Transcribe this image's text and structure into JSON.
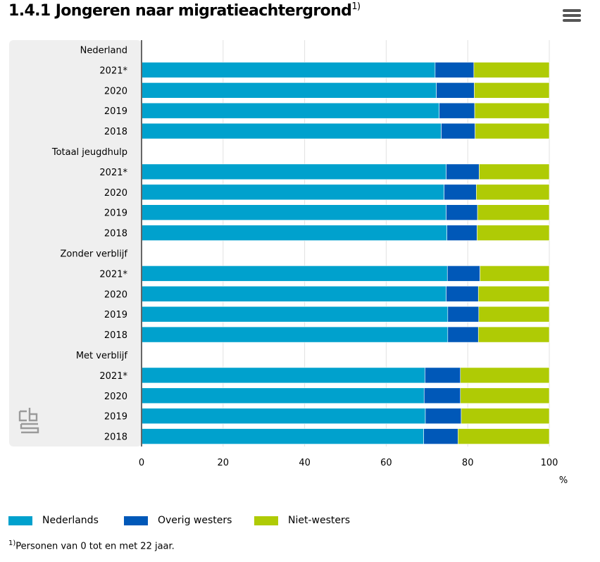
{
  "page": {
    "title": "1.4.1 Jongeren naar migratieachtergrond",
    "title_sup": "1)",
    "menu_icon": "hamburger-menu-icon",
    "logo": "cbs",
    "footnote_sup": "1)",
    "footnote": "Personen van 0 tot en met 22 jaar."
  },
  "chart_data": {
    "type": "bar",
    "orientation": "horizontal",
    "stacked": true,
    "title": "1.4.1 Jongeren naar migratieachtergrond",
    "unit": "%",
    "xlim": [
      0,
      100
    ],
    "xticks": [
      0,
      20,
      40,
      60,
      80,
      100
    ],
    "grid": true,
    "legend_position": "bottom-left",
    "colors": {
      "Nederlands": "#00a1cd",
      "Overig westers": "#0058b8",
      "Niet-westers": "#afcb05"
    },
    "groups": [
      {
        "name": "Nederland",
        "rows": [
          {
            "label": "2021*",
            "values": [
              72,
              9.5,
              18.5
            ]
          },
          {
            "label": "2020",
            "values": [
              72.3,
              9.3,
              18.4
            ]
          },
          {
            "label": "2019",
            "values": [
              73,
              8.7,
              18.3
            ]
          },
          {
            "label": "2018",
            "values": [
              73.5,
              8.3,
              18.2
            ]
          }
        ]
      },
      {
        "name": "Totaal jeugdhulp",
        "rows": [
          {
            "label": "2021*",
            "values": [
              74.7,
              8.1,
              17.2
            ]
          },
          {
            "label": "2020",
            "values": [
              74.2,
              7.9,
              17.9
            ]
          },
          {
            "label": "2019",
            "values": [
              74.7,
              7.7,
              17.6
            ]
          },
          {
            "label": "2018",
            "values": [
              74.9,
              7.4,
              17.7
            ]
          }
        ]
      },
      {
        "name": "Zonder verblijf",
        "rows": [
          {
            "label": "2021*",
            "values": [
              75,
              8,
              17
            ]
          },
          {
            "label": "2020",
            "values": [
              74.7,
              7.9,
              17.4
            ]
          },
          {
            "label": "2019",
            "values": [
              75.1,
              7.6,
              17.3
            ]
          },
          {
            "label": "2018",
            "values": [
              75.1,
              7.5,
              17.4
            ]
          }
        ]
      },
      {
        "name": "Met verblijf",
        "rows": [
          {
            "label": "2021*",
            "values": [
              69.5,
              8.7,
              21.8
            ]
          },
          {
            "label": "2020",
            "values": [
              69.3,
              8.9,
              21.8
            ]
          },
          {
            "label": "2019",
            "values": [
              69.6,
              8.8,
              21.6
            ]
          },
          {
            "label": "2018",
            "values": [
              69.2,
              8.4,
              22.4
            ]
          }
        ]
      }
    ],
    "series": [
      {
        "name": "Nederlands"
      },
      {
        "name": "Overig westers"
      },
      {
        "name": "Niet-westers"
      }
    ]
  }
}
